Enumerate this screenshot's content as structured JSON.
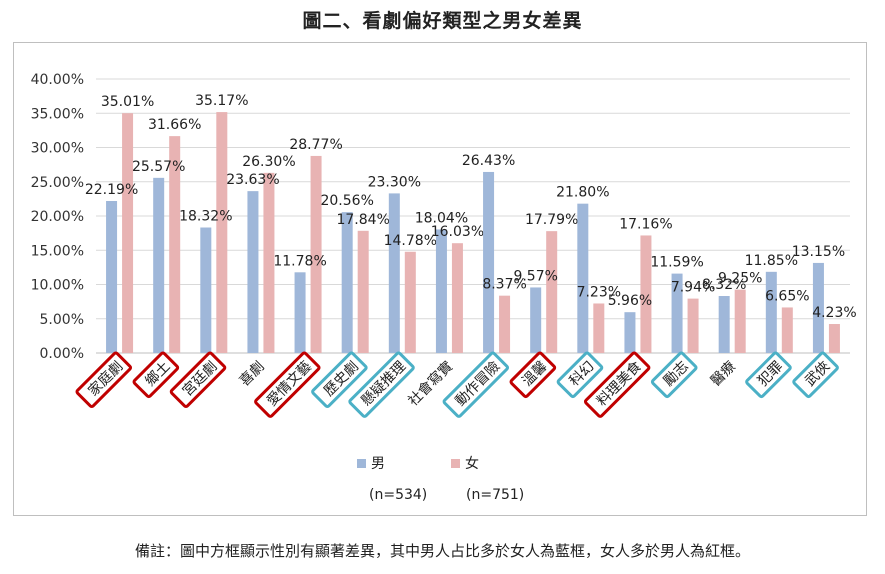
{
  "title": "圖二、看劇偏好類型之男女差異",
  "footnote": "備註：圖中方框顯示性別有顯著差異，其中男人占比多於女人為藍框，女人多於男人為紅框。",
  "colors": {
    "male": "#9fb7d9",
    "female": "#e8b3b3",
    "male_box": "#4bb0c6",
    "female_box": "#c00000",
    "grid": "#d9d9d9"
  },
  "chart_data": {
    "type": "bar",
    "title": "圖二、看劇偏好類型之男女差異",
    "ylim": [
      0,
      40
    ],
    "ytick_labels": [
      "0.00%",
      "5.00%",
      "10.00%",
      "15.00%",
      "20.00%",
      "25.00%",
      "30.00%",
      "35.00%",
      "40.00%"
    ],
    "categories": [
      "家庭劇",
      "鄉土",
      "宮廷劇",
      "喜劇",
      "愛情文藝",
      "歷史劇",
      "懸疑推理",
      "社會寫實",
      "動作冒險",
      "溫馨",
      "科幻",
      "料理美食",
      "勵志",
      "醫療",
      "犯罪",
      "武俠"
    ],
    "highlight": [
      "female",
      "female",
      "female",
      "none",
      "female",
      "male",
      "male",
      "none",
      "male",
      "female",
      "male",
      "female",
      "male",
      "none",
      "male",
      "male"
    ],
    "series": [
      {
        "name": "男",
        "n_label": "(n=534)",
        "values": [
          22.19,
          25.57,
          18.32,
          23.63,
          11.78,
          20.56,
          23.3,
          18.04,
          26.43,
          9.57,
          21.8,
          5.96,
          11.59,
          8.32,
          11.85,
          13.15
        ],
        "labels": [
          "22.19%",
          "25.57%",
          "18.32%",
          "23.63%",
          "11.78%",
          "20.56%",
          "23.30%",
          "18.04%",
          "26.43%",
          "9.57%",
          "21.80%",
          "5.96%",
          "11.59%",
          "8.32%",
          "11.85%",
          "13.15%"
        ]
      },
      {
        "name": "女",
        "n_label": "(n=751)",
        "values": [
          35.01,
          31.66,
          35.17,
          26.3,
          28.77,
          17.84,
          14.78,
          16.03,
          8.37,
          17.79,
          7.23,
          17.16,
          7.94,
          9.25,
          6.65,
          4.23
        ],
        "labels": [
          "35.01%",
          "31.66%",
          "35.17%",
          "26.30%",
          "28.77%",
          "17.84%",
          "14.78%",
          "16.03%",
          "8.37%",
          "17.79%",
          "7.23%",
          "17.16%",
          "7.94%",
          "9.25%",
          "6.65%",
          "4.23%"
        ]
      }
    ]
  }
}
